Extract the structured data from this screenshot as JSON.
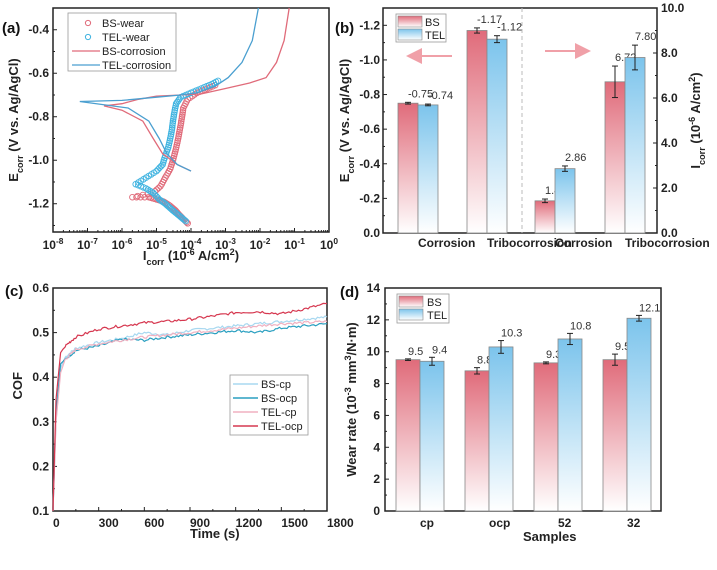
{
  "chart_data": [
    {
      "panel": "(a)",
      "type": "line",
      "title": "",
      "xlabel": "I_corr (10^-6 A/cm^2)",
      "ylabel": "E_corr (V vs. Ag/AgCl)",
      "xscale": "log",
      "xlim": [
        1e-08,
        1
      ],
      "ylim": [
        -1.33,
        -0.3
      ],
      "xticks": [
        "10^-8",
        "10^-7",
        "10^-6",
        "10^-5",
        "10^-4",
        "10^-3",
        "10^-2",
        "10^-1",
        "10^0"
      ],
      "yticks": [
        -0.4,
        -0.6,
        -0.8,
        -1.0,
        -1.2
      ],
      "y_reversed_display": false,
      "legend": "top-left",
      "series": [
        {
          "name": "BS-wear",
          "style": "markers",
          "color": "#e06b7a",
          "points": [
            [
              8e-05,
              -1.29
            ],
            [
              6e-05,
              -1.27
            ],
            [
              4.5e-05,
              -1.25
            ],
            [
              3.5e-05,
              -1.23
            ],
            [
              2.5e-05,
              -1.21
            ],
            [
              1.6e-05,
              -1.19
            ],
            [
              1e-05,
              -1.18
            ],
            [
              6e-06,
              -1.17
            ],
            [
              2e-06,
              -1.17
            ],
            [
              8e-06,
              -1.15
            ],
            [
              1.3e-05,
              -1.12
            ],
            [
              1.8e-05,
              -1.08
            ],
            [
              2.5e-05,
              -1.04
            ],
            [
              3e-05,
              -1.0
            ],
            [
              3.5e-05,
              -0.96
            ],
            [
              4e-05,
              -0.92
            ],
            [
              4.5e-05,
              -0.88
            ],
            [
              5e-05,
              -0.84
            ],
            [
              5.5e-05,
              -0.8
            ],
            [
              6e-05,
              -0.76
            ],
            [
              8e-05,
              -0.72
            ],
            [
              0.00015,
              -0.69
            ],
            [
              0.0003,
              -0.67
            ],
            [
              0.0006,
              -0.65
            ]
          ]
        },
        {
          "name": "TEL-wear",
          "style": "markers",
          "color": "#3fb3e0",
          "points": [
            [
              7e-05,
              -1.28
            ],
            [
              5e-05,
              -1.26
            ],
            [
              3.5e-05,
              -1.24
            ],
            [
              2.5e-05,
              -1.22
            ],
            [
              1.8e-05,
              -1.2
            ],
            [
              1.2e-05,
              -1.18
            ],
            [
              8e-06,
              -1.15
            ],
            [
              5e-06,
              -1.13
            ],
            [
              2.5e-06,
              -1.11
            ],
            [
              5e-06,
              -1.08
            ],
            [
              1e-05,
              -1.05
            ],
            [
              1.5e-05,
              -1.02
            ],
            [
              1.8e-05,
              -0.98
            ],
            [
              2.2e-05,
              -0.94
            ],
            [
              2.5e-05,
              -0.9
            ],
            [
              2.8e-05,
              -0.86
            ],
            [
              3e-05,
              -0.82
            ],
            [
              3.3e-05,
              -0.78
            ],
            [
              3.7e-05,
              -0.74
            ],
            [
              5e-05,
              -0.71
            ],
            [
              0.0001,
              -0.69
            ],
            [
              0.0002,
              -0.67
            ],
            [
              0.0004,
              -0.65
            ],
            [
              0.0007,
              -0.63
            ]
          ]
        },
        {
          "name": "BS-corrosion",
          "style": "line",
          "color": "#e06b7a",
          "points": [
            [
              0.0001,
              -1.05
            ],
            [
              4e-05,
              -1.02
            ],
            [
              1.5e-05,
              -0.97
            ],
            [
              8e-06,
              -0.9
            ],
            [
              4e-06,
              -0.82
            ],
            [
              1e-06,
              -0.77
            ],
            [
              3e-07,
              -0.75
            ],
            [
              1e-06,
              -0.74
            ],
            [
              3e-06,
              -0.72
            ],
            [
              1e-05,
              -0.705
            ],
            [
              5e-05,
              -0.7
            ],
            [
              0.0002,
              -0.695
            ],
            [
              0.001,
              -0.67
            ],
            [
              0.005,
              -0.645
            ],
            [
              0.015,
              -0.62
            ],
            [
              0.03,
              -0.55
            ],
            [
              0.05,
              -0.45
            ],
            [
              0.07,
              -0.3
            ]
          ]
        },
        {
          "name": "TEL-corrosion",
          "style": "line",
          "color": "#4a9fd0",
          "points": [
            [
              0.0001,
              -1.05
            ],
            [
              4e-05,
              -1.02
            ],
            [
              2e-05,
              -0.97
            ],
            [
              1.2e-05,
              -0.9
            ],
            [
              6e-06,
              -0.82
            ],
            [
              1.5e-06,
              -0.76
            ],
            [
              6e-08,
              -0.73
            ],
            [
              1e-06,
              -0.725
            ],
            [
              1e-05,
              -0.71
            ],
            [
              5e-05,
              -0.7
            ],
            [
              0.00015,
              -0.69
            ],
            [
              0.0005,
              -0.66
            ],
            [
              0.0012,
              -0.62
            ],
            [
              0.003,
              -0.55
            ],
            [
              0.006,
              -0.45
            ],
            [
              0.009,
              -0.3
            ]
          ]
        }
      ]
    },
    {
      "panel": "(b)",
      "type": "bar",
      "categories": [
        "Corrosion",
        "Tribocorrosion",
        "Corrosion",
        "Tribocorrosion"
      ],
      "left_axis": {
        "label": "E_corr (V vs. Ag/AgCl)",
        "ylim": [
          0,
          -1.3
        ],
        "ticks": [
          "0.0",
          "-0.2",
          "-0.4",
          "-0.6",
          "-0.8",
          "-1.0",
          "-1.2"
        ],
        "applies_to": [
          0,
          1
        ]
      },
      "right_axis": {
        "label": "I_corr (10^-6 A/cm^2)",
        "ylim": [
          0,
          10
        ],
        "ticks": [
          "0.0",
          "2.0",
          "4.0",
          "6.0",
          "8.0",
          "10.0"
        ],
        "applies_to": [
          2,
          3
        ]
      },
      "series": [
        {
          "name": "BS",
          "values": [
            -0.75,
            -1.17,
            1.43,
            6.72
          ],
          "errors": [
            0.005,
            0.015,
            0.08,
            0.7
          ],
          "labels": [
            "-0.75",
            "-1.17",
            "1.43",
            "6.72"
          ],
          "color": "#e06b7a"
        },
        {
          "name": "TEL",
          "values": [
            -0.74,
            -1.12,
            2.86,
            7.8
          ],
          "errors": [
            0.005,
            0.02,
            0.12,
            0.55
          ],
          "labels": [
            "-0.74",
            "-1.12",
            "2.86",
            "7.80"
          ],
          "color": "#7cc4ec"
        }
      ],
      "annotations": [
        "left arrow pointing to left axis",
        "right arrow pointing to right axis",
        "dashed divider between groups"
      ],
      "legend": "top-left"
    },
    {
      "panel": "(c)",
      "type": "line",
      "xlabel": "Time (s)",
      "ylabel": "COF",
      "xlim": [
        0,
        1800
      ],
      "ylim": [
        0.1,
        0.6
      ],
      "xticks": [
        "0",
        "300",
        "600",
        "900",
        "1200",
        "1500",
        "1800"
      ],
      "yticks": [
        "0.1",
        "0.2",
        "0.3",
        "0.4",
        "0.5",
        "0.6"
      ],
      "legend": "center-right",
      "series": [
        {
          "name": "BS-cp",
          "color": "#a8d8f0",
          "x": [
            0,
            20,
            50,
            80,
            150,
            300,
            450,
            600,
            750,
            900,
            1050,
            1200,
            1350,
            1500,
            1650,
            1800
          ],
          "y": [
            0.1,
            0.3,
            0.42,
            0.445,
            0.465,
            0.478,
            0.487,
            0.5,
            0.495,
            0.505,
            0.51,
            0.515,
            0.52,
            0.525,
            0.53,
            0.535
          ]
        },
        {
          "name": "BS-ocp",
          "color": "#2a9fc0",
          "x": [
            0,
            20,
            50,
            80,
            150,
            300,
            450,
            600,
            750,
            900,
            1050,
            1200,
            1350,
            1500,
            1650,
            1800
          ],
          "y": [
            0.1,
            0.32,
            0.43,
            0.44,
            0.46,
            0.47,
            0.485,
            0.483,
            0.49,
            0.495,
            0.5,
            0.505,
            0.5,
            0.51,
            0.515,
            0.52
          ]
        },
        {
          "name": "TEL-cp",
          "color": "#f0b0c0",
          "x": [
            0,
            20,
            50,
            80,
            150,
            300,
            450,
            600,
            750,
            900,
            1050,
            1200,
            1350,
            1500,
            1650,
            1800
          ],
          "y": [
            0.1,
            0.3,
            0.41,
            0.44,
            0.462,
            0.475,
            0.483,
            0.49,
            0.495,
            0.5,
            0.505,
            0.51,
            0.515,
            0.52,
            0.522,
            0.525
          ]
        },
        {
          "name": "TEL-ocp",
          "color": "#d63850",
          "x": [
            0,
            20,
            50,
            80,
            150,
            300,
            450,
            600,
            750,
            900,
            1050,
            1200,
            1350,
            1500,
            1650,
            1800
          ],
          "y": [
            0.1,
            0.35,
            0.455,
            0.47,
            0.49,
            0.508,
            0.515,
            0.522,
            0.525,
            0.53,
            0.537,
            0.545,
            0.547,
            0.542,
            0.553,
            0.565
          ]
        }
      ]
    },
    {
      "panel": "(d)",
      "type": "bar",
      "xlabel": "Samples",
      "ylabel": "Wear rate (10^-3 mm^3/N·m)",
      "categories": [
        "cp",
        "ocp",
        "52",
        "32"
      ],
      "ylim": [
        0,
        14
      ],
      "yticks": [
        "0",
        "2",
        "4",
        "6",
        "8",
        "10",
        "12",
        "14"
      ],
      "legend": "top-left",
      "series": [
        {
          "name": "BS",
          "values": [
            9.5,
            8.8,
            9.3,
            9.5
          ],
          "errors": [
            0.05,
            0.2,
            0.06,
            0.35
          ],
          "labels": [
            "9.5",
            "8.8",
            "9.3",
            "9.5"
          ],
          "color": "#e06b7a"
        },
        {
          "name": "TEL",
          "values": [
            9.4,
            10.3,
            10.8,
            12.1
          ],
          "errors": [
            0.25,
            0.4,
            0.35,
            0.18
          ],
          "labels": [
            "9.4",
            "10.3",
            "10.8",
            "12.1"
          ],
          "color": "#7cc4ec"
        }
      ]
    }
  ],
  "panel_labels": {
    "a": "(a)",
    "b": "(b)",
    "c": "(c)",
    "d": "(d)"
  }
}
